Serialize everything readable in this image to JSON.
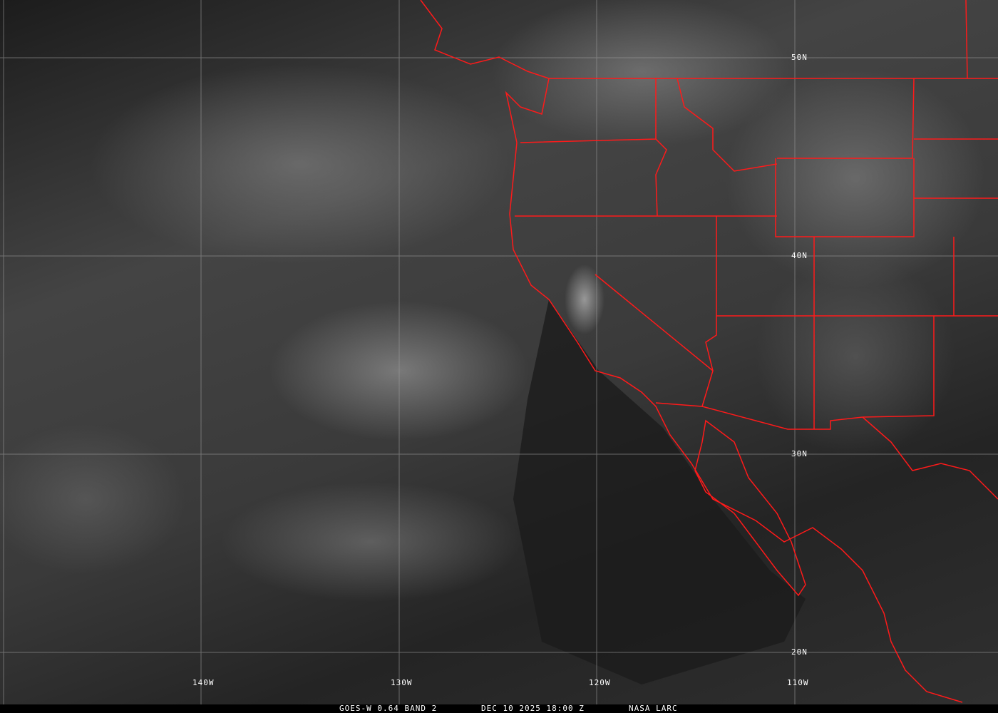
{
  "image": {
    "type": "satellite-visible",
    "colors": {
      "borders": "#ff1a1a",
      "grid": "#9a9a9a",
      "labels": "#ffffff"
    }
  },
  "grid": {
    "longitudes": [
      "140W",
      "130W",
      "120W",
      "110W"
    ],
    "latitudes": [
      "50N",
      "40N",
      "30N",
      "20N"
    ]
  },
  "footer": {
    "satellite": "GOES-W 0.64 BAND 2",
    "datetime": "DEC 10 2025 18:00 Z",
    "source": "NASA LARC"
  }
}
